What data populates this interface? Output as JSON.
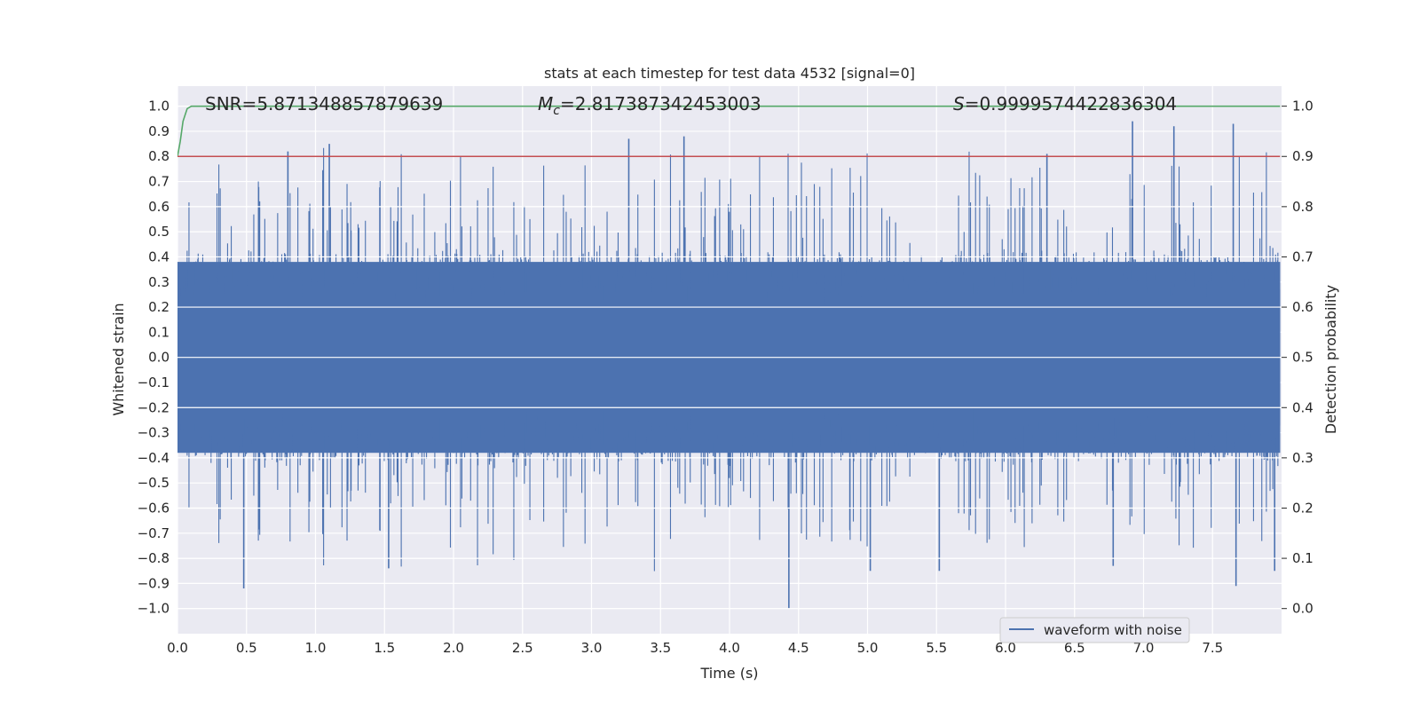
{
  "chart_data": {
    "type": "line",
    "title": "stats at each timestep for test data 4532 [signal=0]",
    "xlabel": "Time (s)",
    "ylabel": "Whitened strain",
    "ylabel_right": "Detection probability",
    "xlim": [
      0.0,
      8.0
    ],
    "ylim": [
      -1.1,
      1.08
    ],
    "ylim_right": [
      -0.05,
      1.04
    ],
    "x_ticks": [
      "0.0",
      "0.5",
      "1.0",
      "1.5",
      "2.0",
      "2.5",
      "3.0",
      "3.5",
      "4.0",
      "4.5",
      "5.0",
      "5.5",
      "6.0",
      "6.5",
      "7.0",
      "7.5"
    ],
    "y_ticks": [
      "1.0",
      "0.9",
      "0.8",
      "0.7",
      "0.6",
      "0.5",
      "0.4",
      "0.3",
      "0.2",
      "0.1",
      "0.0",
      "-0.1",
      "-0.2",
      "-0.3",
      "-0.4",
      "-0.5",
      "-0.6",
      "-0.7",
      "-0.8",
      "-0.9",
      "-1.0"
    ],
    "y_right_ticks": [
      "1.0",
      "0.9",
      "0.8",
      "0.7",
      "0.6",
      "0.5",
      "0.4",
      "0.3",
      "0.2",
      "0.1",
      "0.0"
    ],
    "annotations": {
      "snr_prefix": "SNR=",
      "snr_value": "5.871348857879639",
      "mc_symbol": "M",
      "mc_subscript": "c",
      "mc_value": "=2.817387342453003",
      "s_symbol": "S",
      "s_value": "=0.9999574422836304"
    },
    "legend": {
      "label": "waveform with noise",
      "placement": "lower-right"
    },
    "series": [
      {
        "name": "waveform with noise",
        "color": "#4c72b0",
        "axis": "left",
        "description": "whitened noisy strain, 8 s at 4096 Hz, amplitude mostly within ±0.4 with spikes",
        "envelope": {
          "core_abs": 0.38,
          "max": 0.94,
          "min": -1.0
        },
        "spikes": [
          {
            "t": 0.8,
            "v": 0.82
          },
          {
            "t": 1.1,
            "v": 0.85
          },
          {
            "t": 3.27,
            "v": 0.87
          },
          {
            "t": 3.67,
            "v": 0.88
          },
          {
            "t": 6.3,
            "v": 0.81
          },
          {
            "t": 6.92,
            "v": 0.94
          },
          {
            "t": 7.22,
            "v": 0.92
          },
          {
            "t": 7.65,
            "v": 0.93
          },
          {
            "t": 0.48,
            "v": -0.92
          },
          {
            "t": 1.53,
            "v": -0.84
          },
          {
            "t": 4.43,
            "v": -1.0
          },
          {
            "t": 5.02,
            "v": -0.85
          },
          {
            "t": 5.52,
            "v": -0.85
          },
          {
            "t": 6.78,
            "v": -0.83
          },
          {
            "t": 7.67,
            "v": -0.91
          },
          {
            "t": 7.95,
            "v": -0.85
          }
        ]
      },
      {
        "name": "detection probability",
        "color": "#55a868",
        "axis": "right",
        "x": [
          0.0,
          0.02,
          0.04,
          0.07,
          0.1,
          0.2,
          8.0
        ],
        "values": [
          0.9,
          0.93,
          0.97,
          0.995,
          1.0,
          1.0,
          1.0
        ]
      },
      {
        "name": "threshold",
        "color": "#c44e52",
        "axis": "right",
        "x": [
          0.0,
          8.0
        ],
        "values": [
          0.9,
          0.9
        ]
      }
    ]
  }
}
